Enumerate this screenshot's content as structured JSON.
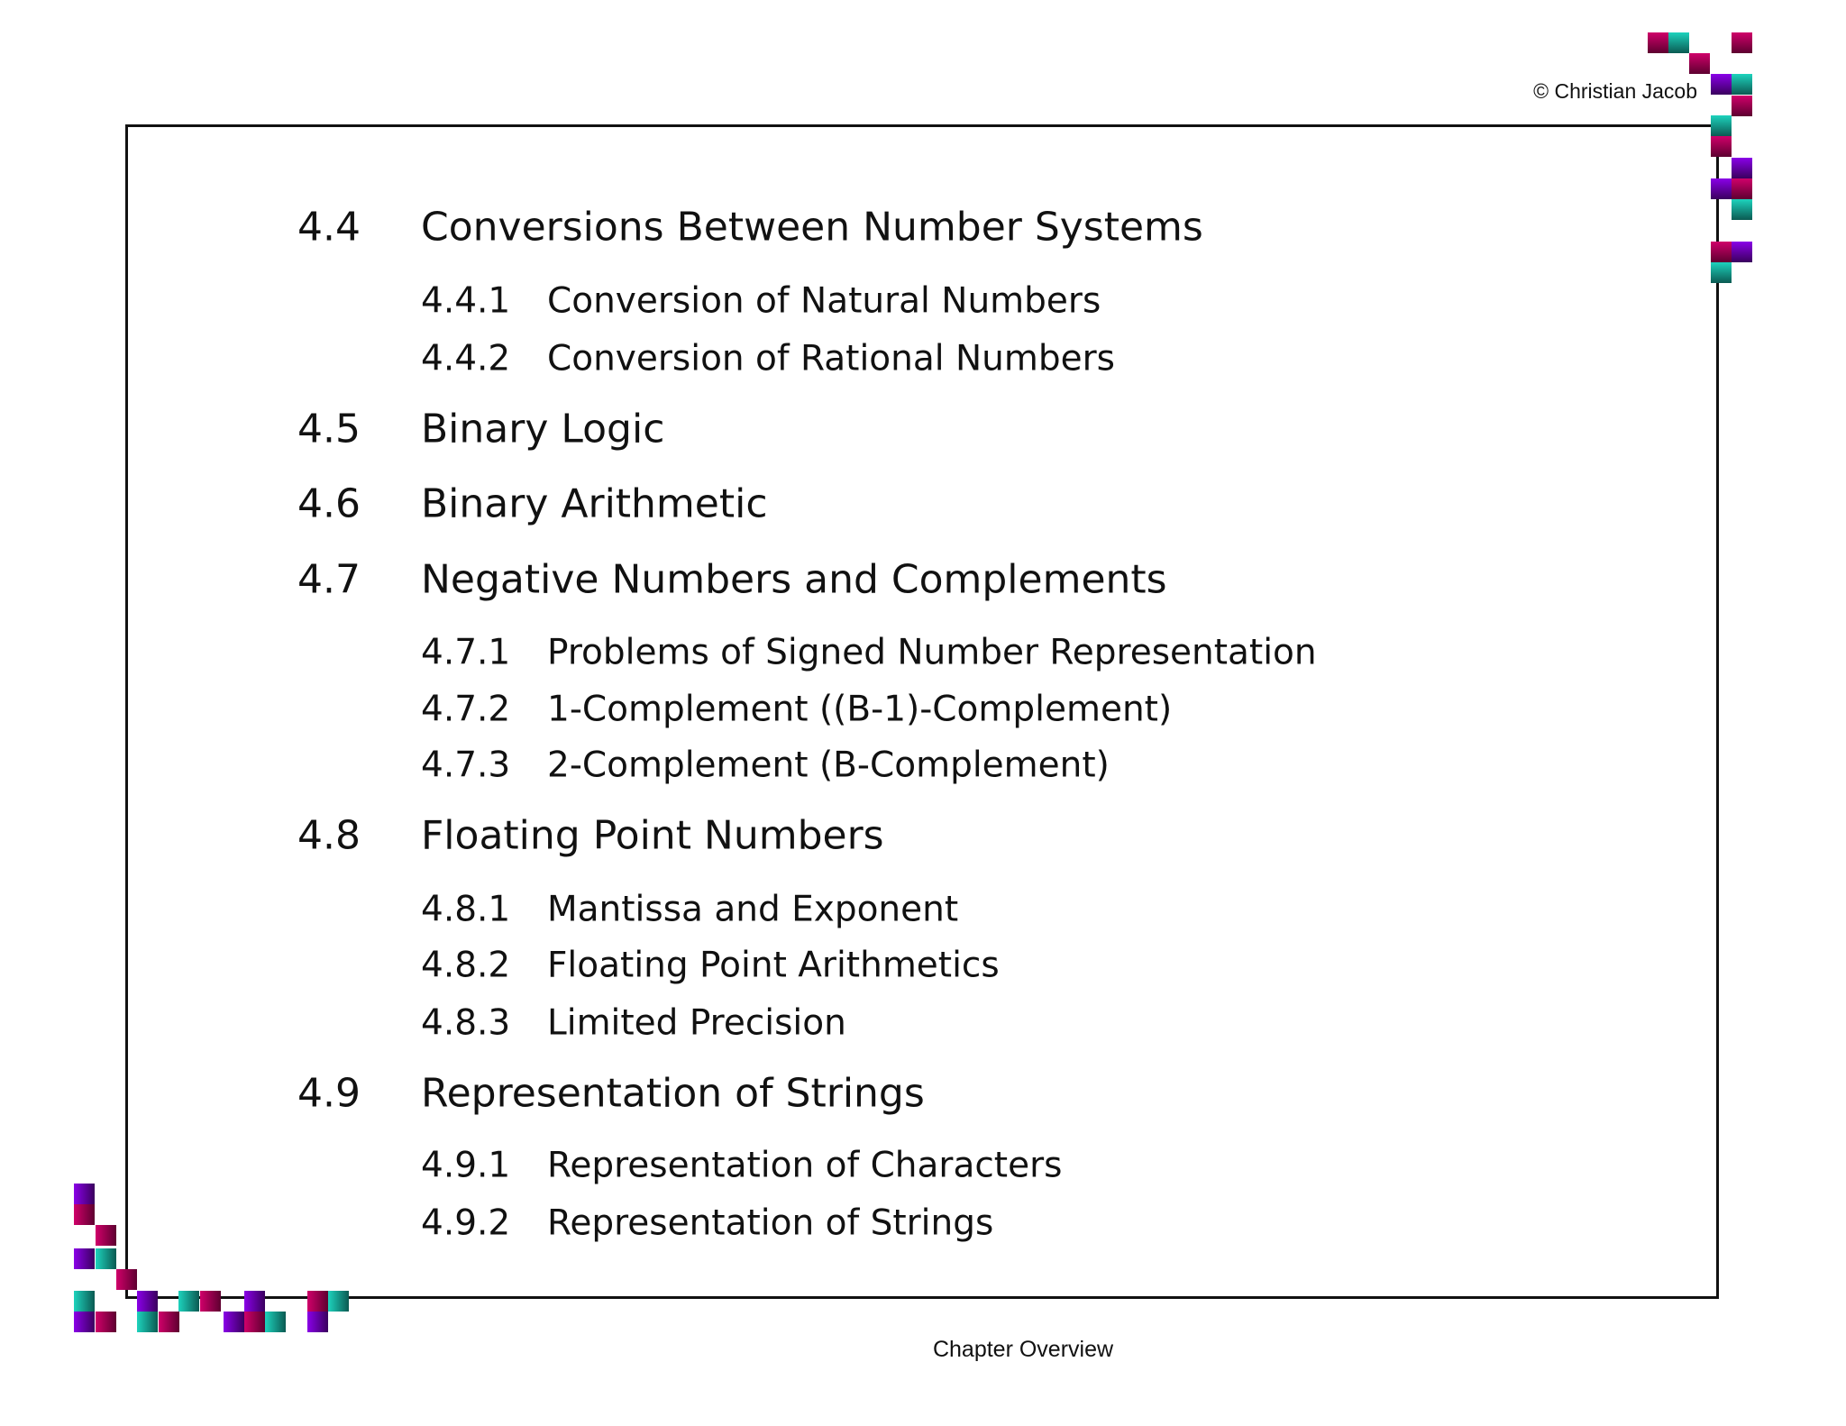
{
  "copyright": "© Christian Jacob",
  "footer": "Chapter Overview",
  "toc": [
    {
      "level": 1,
      "num": "4.4",
      "title": "Conversions Between Number Systems"
    },
    {
      "level": 2,
      "num": "4.4.1",
      "title": "Conversion of Natural Numbers"
    },
    {
      "level": 2,
      "num": "4.4.2",
      "title": "Conversion of Rational Numbers"
    },
    {
      "level": 1,
      "num": "4.5",
      "title": "Binary Logic"
    },
    {
      "level": 1,
      "num": "4.6",
      "title": "Binary Arithmetic"
    },
    {
      "level": 1,
      "num": "4.7",
      "title": "Negative Numbers and Complements"
    },
    {
      "level": 2,
      "num": "4.7.1",
      "title": "Problems of Signed Number Representation"
    },
    {
      "level": 2,
      "num": "4.7.2",
      "title": "1-Complement ((B-1)-Complement)"
    },
    {
      "level": 2,
      "num": "4.7.3",
      "title": "2-Complement (B-Complement)"
    },
    {
      "level": 1,
      "num": "4.8",
      "title": "Floating Point Numbers"
    },
    {
      "level": 2,
      "num": "4.8.1",
      "title": "Mantissa and Exponent"
    },
    {
      "level": 2,
      "num": "4.8.2",
      "title": "Floating Point Arithmetics"
    },
    {
      "level": 2,
      "num": "4.8.3",
      "title": "Limited Precision"
    },
    {
      "level": 1,
      "num": "4.9",
      "title": "Representation of Strings"
    },
    {
      "level": 2,
      "num": "4.9.1",
      "title": "Representation of Characters"
    },
    {
      "level": 2,
      "num": "4.9.2",
      "title": "Representation of Strings"
    }
  ],
  "colors": {
    "magenta": "#c0005f",
    "teal": "#18bfa8",
    "purple": "#7a00d0"
  }
}
